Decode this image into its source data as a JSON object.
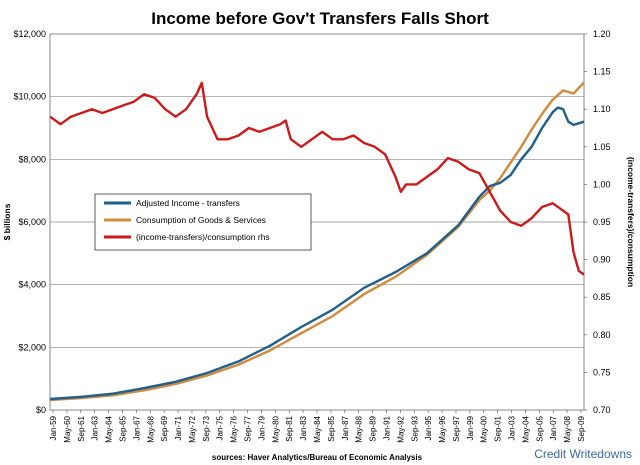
{
  "chart_data": {
    "type": "line",
    "title": "Income before Gov't Transfers Falls Short",
    "ylabel": "$ billions",
    "y2label": "(income-transfers)/consumption",
    "source": "sources: Haver Analytics/Bureau  of Economic Analysis",
    "credit": "Credit Writedowns",
    "ylim": [
      0,
      12000
    ],
    "y2lim": [
      0.7,
      1.2
    ],
    "yticks": [
      "$0",
      "$2,000",
      "$4,000",
      "$6,000",
      "$8,000",
      "$10,000",
      "$12,000"
    ],
    "y2ticks": [
      "0.70",
      "0.75",
      "0.80",
      "0.85",
      "0.90",
      "0.95",
      "1.00",
      "1.05",
      "1.10",
      "1.15",
      "1.20"
    ],
    "xticks": [
      "Jan-59",
      "May-60",
      "Sep-61",
      "Jan-63",
      "May-64",
      "Sep-65",
      "Jan-67",
      "May-68",
      "Sep-69",
      "Jan-71",
      "May-72",
      "Sep-73",
      "Jan-75",
      "May-76",
      "Sep-77",
      "Jan-79",
      "May-80",
      "Sep-81",
      "Jan-83",
      "May-84",
      "Sep-85",
      "Jan-87",
      "May-88",
      "Sep-89",
      "Jan-91",
      "May-92",
      "Sep-93",
      "Jan-95",
      "May-96",
      "Sep-97",
      "Jan-99",
      "May-00",
      "Sep-01",
      "Jan-03",
      "May-04",
      "Sep-05",
      "Jan-07",
      "May-08",
      "Sep-09"
    ],
    "legend_position": "center-left",
    "grid": "horizontal",
    "series": [
      {
        "name": "Adjusted Income - transfers",
        "axis": "left",
        "color": "#1f5f8b",
        "x": [
          1959,
          1962,
          1965,
          1968,
          1971,
          1974,
          1977,
          1980,
          1983,
          1986,
          1989,
          1992,
          1995,
          1998,
          2000,
          2001,
          2002,
          2003,
          2004,
          2005,
          2006,
          2007,
          2007.5,
          2008,
          2008.5,
          2009,
          2009.5,
          2010
        ],
        "y": [
          350,
          420,
          520,
          700,
          900,
          1180,
          1550,
          2050,
          2650,
          3200,
          3900,
          4400,
          5000,
          5900,
          6800,
          7150,
          7250,
          7500,
          8000,
          8400,
          9000,
          9500,
          9650,
          9600,
          9200,
          9100,
          9150,
          9200
        ]
      },
      {
        "name": "Consumption of Goods & Services",
        "axis": "left",
        "color": "#cf8a3e",
        "x": [
          1959,
          1962,
          1965,
          1968,
          1971,
          1974,
          1977,
          1980,
          1983,
          1986,
          1989,
          1992,
          1995,
          1998,
          2000,
          2001,
          2002,
          2003,
          2004,
          2005,
          2006,
          2007,
          2008,
          2009,
          2010
        ],
        "y": [
          320,
          380,
          470,
          630,
          830,
          1100,
          1450,
          1900,
          2450,
          3000,
          3700,
          4250,
          4950,
          5850,
          6700,
          7000,
          7400,
          7900,
          8400,
          8950,
          9450,
          9900,
          10200,
          10100,
          10450
        ]
      },
      {
        "name": "(income-transfers)/consumption rhs",
        "axis": "right",
        "color": "#cc1a1a",
        "x": [
          1959,
          1960,
          1961,
          1962,
          1963,
          1964,
          1965,
          1966,
          1967,
          1968,
          1969,
          1970,
          1971,
          1972,
          1973,
          1973.5,
          1974,
          1975,
          1976,
          1977,
          1978,
          1979,
          1980,
          1981,
          1981.5,
          1982,
          1983,
          1984,
          1985,
          1986,
          1987,
          1988,
          1989,
          1990,
          1991,
          1992,
          1992.5,
          1993,
          1994,
          1995,
          1996,
          1997,
          1998,
          1999,
          2000,
          2001,
          2002,
          2003,
          2004,
          2005,
          2006,
          2007,
          2008,
          2008.5,
          2009,
          2009.5,
          2010
        ],
        "y": [
          1.09,
          1.08,
          1.09,
          1.095,
          1.1,
          1.095,
          1.1,
          1.105,
          1.11,
          1.12,
          1.115,
          1.1,
          1.09,
          1.1,
          1.12,
          1.135,
          1.09,
          1.06,
          1.06,
          1.065,
          1.075,
          1.07,
          1.075,
          1.08,
          1.085,
          1.06,
          1.05,
          1.06,
          1.07,
          1.06,
          1.06,
          1.065,
          1.055,
          1.05,
          1.04,
          1.01,
          0.99,
          1.0,
          1.0,
          1.01,
          1.02,
          1.035,
          1.03,
          1.02,
          1.015,
          0.99,
          0.965,
          0.95,
          0.945,
          0.955,
          0.97,
          0.975,
          0.965,
          0.96,
          0.91,
          0.885,
          0.88
        ]
      }
    ]
  }
}
